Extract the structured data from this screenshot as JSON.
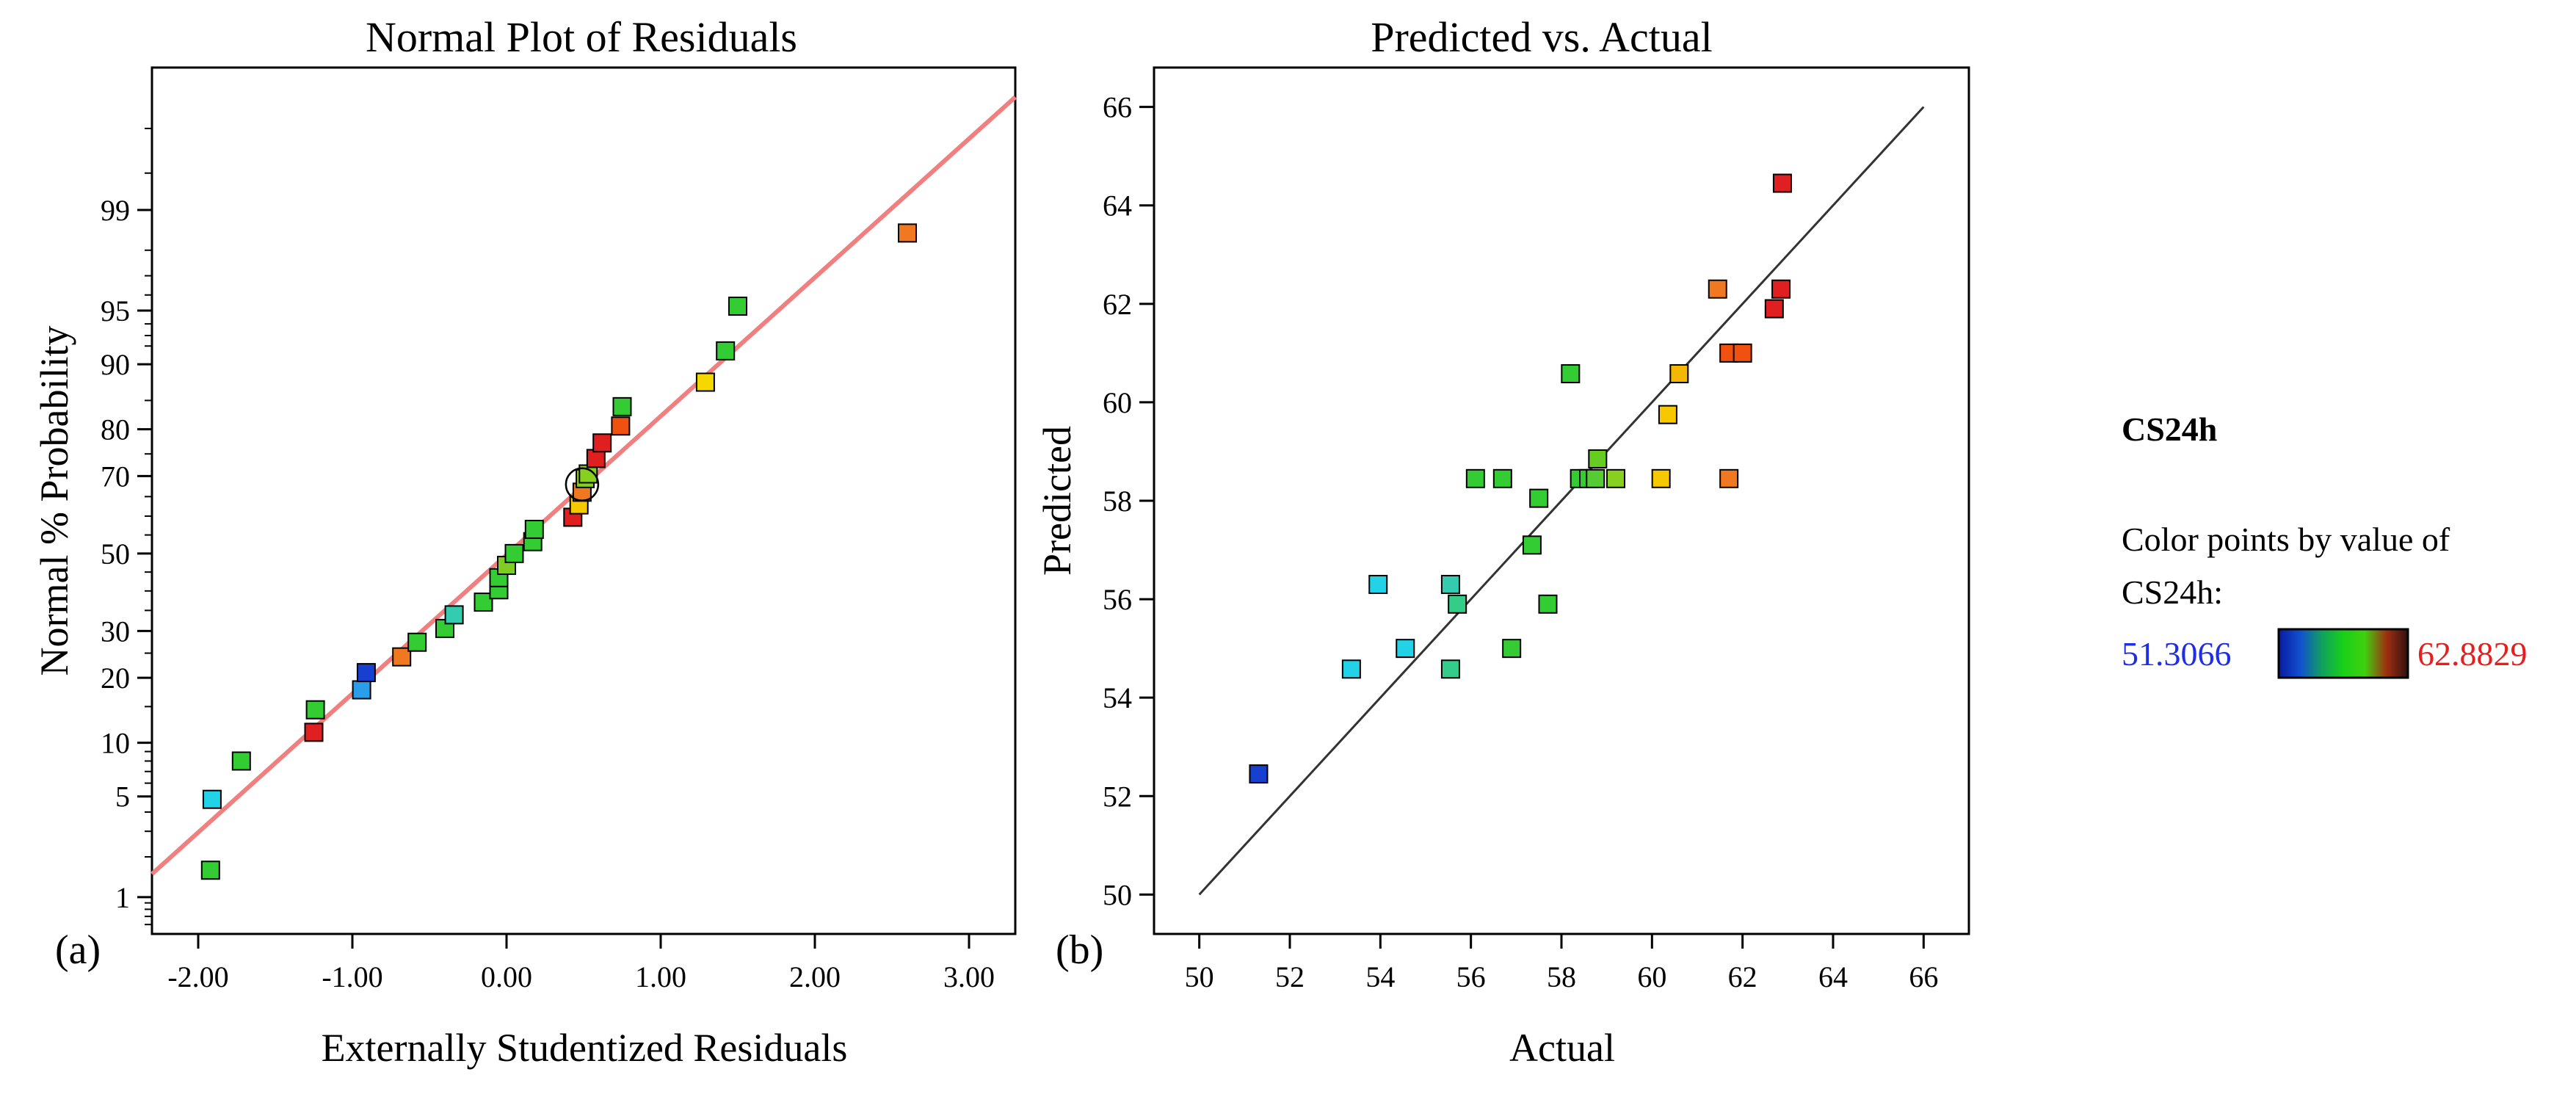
{
  "chart_data": [
    {
      "type": "scatter",
      "panel_label": "(a)",
      "title": "Normal Plot of Residuals",
      "xlabel": "Externally Studentized Residuals",
      "ylabel": "Normal % Probability",
      "xlim": [
        -2.3,
        3.3
      ],
      "x_ticks": [
        -2.0,
        -1.0,
        0.0,
        1.0,
        2.0,
        3.0
      ],
      "x_tick_labels": [
        "-2.00",
        "-1.00",
        "0.00",
        "1.00",
        "2.00",
        "3.00"
      ],
      "y_scale": "normal-probability",
      "ylim_percent": [
        0.5,
        99.95
      ],
      "y_ticks": [
        1,
        5,
        10,
        20,
        30,
        50,
        70,
        80,
        90,
        95,
        99
      ],
      "y_tick_labels": [
        "1",
        "5",
        "10",
        "20",
        "30",
        "50",
        "70",
        "80",
        "90",
        "95",
        "99"
      ],
      "reference_line": {
        "color": "#f08080",
        "from": [
          -2.3,
          1.5
        ],
        "to": [
          3.3,
          99.9
        ]
      },
      "highlight_circle_at": [
        0.49,
        68
      ],
      "points": [
        {
          "x": -1.92,
          "y": 1.6,
          "color": "#33cc33"
        },
        {
          "x": -1.91,
          "y": 4.8,
          "color": "#22d3e8"
        },
        {
          "x": -1.72,
          "y": 8.0,
          "color": "#33cc33"
        },
        {
          "x": -1.25,
          "y": 11.3,
          "color": "#e02020"
        },
        {
          "x": -1.24,
          "y": 14.5,
          "color": "#33cc33"
        },
        {
          "x": -0.94,
          "y": 17.8,
          "color": "#2a9ee8"
        },
        {
          "x": -0.91,
          "y": 21.0,
          "color": "#1840d0"
        },
        {
          "x": -0.68,
          "y": 24.2,
          "color": "#f07820"
        },
        {
          "x": -0.58,
          "y": 27.4,
          "color": "#33cc33"
        },
        {
          "x": -0.4,
          "y": 30.6,
          "color": "#33cc33"
        },
        {
          "x": -0.34,
          "y": 33.9,
          "color": "#33ccb0"
        },
        {
          "x": -0.15,
          "y": 37.1,
          "color": "#33cc33"
        },
        {
          "x": -0.05,
          "y": 40.3,
          "color": "#33cc33"
        },
        {
          "x": -0.05,
          "y": 43.5,
          "color": "#33cc33"
        },
        {
          "x": 0.0,
          "y": 46.8,
          "color": "#7fcc22"
        },
        {
          "x": 0.05,
          "y": 50.0,
          "color": "#33cc33"
        },
        {
          "x": 0.17,
          "y": 53.2,
          "color": "#33cc33"
        },
        {
          "x": 0.18,
          "y": 56.5,
          "color": "#33cc33"
        },
        {
          "x": 0.43,
          "y": 59.7,
          "color": "#e02020"
        },
        {
          "x": 0.47,
          "y": 62.9,
          "color": "#f5c800"
        },
        {
          "x": 0.49,
          "y": 66.1,
          "color": "#f07820"
        },
        {
          "x": 0.51,
          "y": 69.4,
          "color": "#88d020"
        },
        {
          "x": 0.53,
          "y": 70.5,
          "color": "#88d020"
        },
        {
          "x": 0.58,
          "y": 74.0,
          "color": "#e02020"
        },
        {
          "x": 0.62,
          "y": 77.3,
          "color": "#e02020"
        },
        {
          "x": 0.74,
          "y": 80.6,
          "color": "#f05010"
        },
        {
          "x": 0.75,
          "y": 84.0,
          "color": "#33cc33"
        },
        {
          "x": 1.29,
          "y": 87.7,
          "color": "#f5d800"
        },
        {
          "x": 1.42,
          "y": 91.5,
          "color": "#33cc33"
        },
        {
          "x": 1.5,
          "y": 95.3,
          "color": "#33cc33"
        },
        {
          "x": 2.6,
          "y": 98.5,
          "color": "#f07820"
        }
      ]
    },
    {
      "type": "scatter",
      "panel_label": "(b)",
      "title": "Predicted vs. Actual",
      "xlabel": "Actual",
      "ylabel": "Predicted",
      "xlim": [
        49,
        67
      ],
      "ylim": [
        49.2,
        66.8
      ],
      "x_ticks": [
        50,
        52,
        54,
        56,
        58,
        60,
        62,
        64,
        66
      ],
      "x_tick_labels": [
        "50",
        "52",
        "54",
        "56",
        "58",
        "60",
        "62",
        "64",
        "66"
      ],
      "y_ticks": [
        50,
        52,
        54,
        56,
        58,
        60,
        62,
        64,
        66
      ],
      "y_tick_labels": [
        "50",
        "52",
        "54",
        "56",
        "58",
        "60",
        "62",
        "64",
        "66"
      ],
      "reference_line": {
        "color": "#333333",
        "from": [
          50,
          50
        ],
        "to": [
          66,
          66
        ]
      },
      "points": [
        {
          "x": 51.31,
          "y": 52.45,
          "color": "#1840d0"
        },
        {
          "x": 53.36,
          "y": 54.58,
          "color": "#22d3e8"
        },
        {
          "x": 53.95,
          "y": 56.3,
          "color": "#22d3e8"
        },
        {
          "x": 54.55,
          "y": 55.0,
          "color": "#22d3e8"
        },
        {
          "x": 55.55,
          "y": 56.3,
          "color": "#33ccb0"
        },
        {
          "x": 55.55,
          "y": 54.58,
          "color": "#33cc88"
        },
        {
          "x": 55.7,
          "y": 55.9,
          "color": "#33cc88"
        },
        {
          "x": 56.1,
          "y": 58.45,
          "color": "#33cc33"
        },
        {
          "x": 56.7,
          "y": 58.45,
          "color": "#33cc33"
        },
        {
          "x": 56.9,
          "y": 55.0,
          "color": "#33cc33"
        },
        {
          "x": 57.35,
          "y": 57.1,
          "color": "#33cc33"
        },
        {
          "x": 57.5,
          "y": 58.05,
          "color": "#33cc33"
        },
        {
          "x": 57.7,
          "y": 55.9,
          "color": "#33cc33"
        },
        {
          "x": 58.2,
          "y": 60.58,
          "color": "#33cc33"
        },
        {
          "x": 58.4,
          "y": 58.45,
          "color": "#33cc33"
        },
        {
          "x": 58.6,
          "y": 58.45,
          "color": "#33cc33"
        },
        {
          "x": 58.75,
          "y": 58.45,
          "color": "#55cc33"
        },
        {
          "x": 58.8,
          "y": 58.85,
          "color": "#66cc22"
        },
        {
          "x": 59.2,
          "y": 58.45,
          "color": "#88d020"
        },
        {
          "x": 60.2,
          "y": 58.45,
          "color": "#f5c800"
        },
        {
          "x": 60.35,
          "y": 59.75,
          "color": "#f5c800"
        },
        {
          "x": 60.6,
          "y": 60.58,
          "color": "#f5b800"
        },
        {
          "x": 61.45,
          "y": 62.3,
          "color": "#f07820"
        },
        {
          "x": 61.7,
          "y": 61.0,
          "color": "#f05010"
        },
        {
          "x": 61.7,
          "y": 58.45,
          "color": "#f07820"
        },
        {
          "x": 62.0,
          "y": 61.0,
          "color": "#f05010"
        },
        {
          "x": 62.7,
          "y": 61.9,
          "color": "#e02020"
        },
        {
          "x": 62.85,
          "y": 62.3,
          "color": "#e02020"
        },
        {
          "x": 62.88,
          "y": 64.45,
          "color": "#e02020"
        }
      ]
    }
  ],
  "legend": {
    "title": "CS24h",
    "caption_line1": "Color points by value of",
    "caption_line2": "CS24h:",
    "min_label": "51.3066",
    "max_label": "62.8829",
    "min_color": "#1e2ee8",
    "max_color": "#e61e1e",
    "gradient_colors": [
      "#0a1aa0",
      "#1050d0",
      "#10a060",
      "#18d018",
      "#40d010",
      "#a03010",
      "#301010"
    ]
  }
}
